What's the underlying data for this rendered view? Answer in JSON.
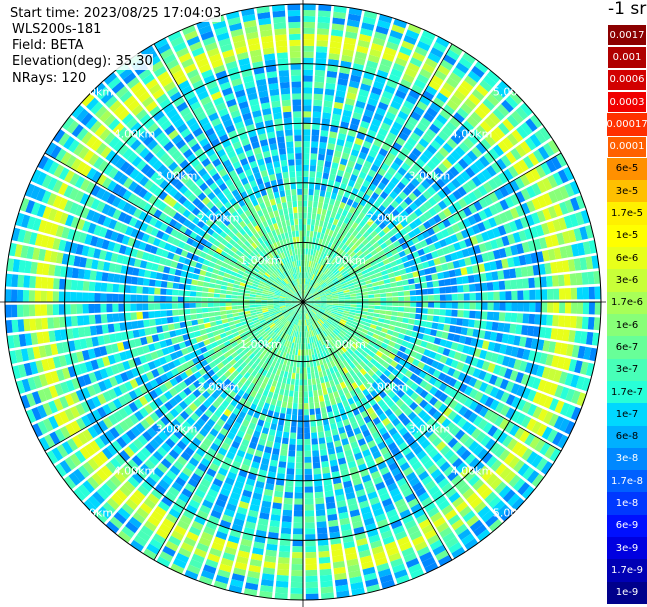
{
  "header": {
    "start_time": "Start time: 2023/08/25 17:04:03",
    "instrument": "WLS200s-181",
    "field": "Field: BETA",
    "elevation": "Elevation(deg): 35.30",
    "nrays": "NRays: 120"
  },
  "chart_data": {
    "type": "heatmap",
    "projection": "polar-ppi",
    "field": "BETA",
    "units": "-1 sr",
    "elevation_deg": 35.3,
    "n_rays": 120,
    "max_range_km": 5.0,
    "range_rings_km": [
      1,
      2,
      3,
      4,
      5
    ],
    "azimuth_lines_deg": [
      0,
      30,
      60,
      90,
      120,
      150,
      180,
      210,
      240,
      270,
      300,
      330
    ],
    "ring_labels": [
      "1.00km",
      "2.00km",
      "3.00km",
      "4.00km",
      "5.00km"
    ],
    "colorbar": {
      "title": "-1 sr",
      "labels": [
        "0.0017",
        "0.001",
        "0.0006",
        "0.0003",
        "0.00017",
        "0.0001",
        "6e-5",
        "3e-5",
        "1.7e-5",
        "1e-5",
        "6e-6",
        "3e-6",
        "1.7e-6",
        "1e-6",
        "6e-7",
        "3e-7",
        "1.7e-7",
        "1e-7",
        "6e-8",
        "3e-8",
        "1.7e-8",
        "1e-8",
        "6e-9",
        "3e-9",
        "1.7e-9",
        "1e-9"
      ],
      "colors": [
        "#8b0000",
        "#b00000",
        "#d20000",
        "#f00000",
        "#ff3000",
        "#ff6000",
        "#ff9000",
        "#ffc000",
        "#fff000",
        "#ffff00",
        "#e8ff1a",
        "#c8ff38",
        "#a8ff58",
        "#88ff78",
        "#68ff98",
        "#48ffb8",
        "#28ffd8",
        "#00d8ff",
        "#00b0ff",
        "#0088ff",
        "#0060ff",
        "#0038ff",
        "#0010ff",
        "#0000e0",
        "#0000b4",
        "#00008b"
      ],
      "boxed_labels": [
        "0.0017",
        "0.001",
        "0.0006",
        "0.0003",
        "0.0001"
      ]
    }
  }
}
